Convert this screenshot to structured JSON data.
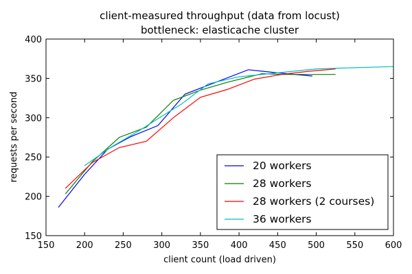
{
  "chart_data": {
    "type": "line",
    "title": [
      "client-measured throughput (data from locust)",
      "bottleneck: elasticache cluster"
    ],
    "xlabel": "client count (load driven)",
    "ylabel": "requests per second",
    "xlim": [
      150,
      600
    ],
    "ylim": [
      150,
      400
    ],
    "xticks": [
      150,
      200,
      250,
      300,
      350,
      400,
      450,
      500,
      550,
      600
    ],
    "yticks": [
      150,
      200,
      250,
      300,
      350,
      400
    ],
    "grid": false,
    "legend_position": "lower-right",
    "series": [
      {
        "name": "20 workers",
        "color": "#0000ff",
        "points": [
          [
            166,
            186
          ],
          [
            200,
            228
          ],
          [
            230,
            260
          ],
          [
            260,
            276
          ],
          [
            295,
            290
          ],
          [
            330,
            330
          ],
          [
            412,
            361
          ],
          [
            450,
            357
          ],
          [
            495,
            353
          ]
        ]
      },
      {
        "name": "28 workers",
        "color": "#008000",
        "points": [
          [
            175,
            203
          ],
          [
            210,
            244
          ],
          [
            245,
            275
          ],
          [
            280,
            288
          ],
          [
            315,
            322
          ],
          [
            350,
            335
          ],
          [
            385,
            345
          ],
          [
            430,
            356
          ],
          [
            455,
            355
          ],
          [
            525,
            355
          ]
        ]
      },
      {
        "name": "28 workers (2 courses)",
        "color": "#ff0000",
        "points": [
          [
            175,
            210
          ],
          [
            210,
            243
          ],
          [
            245,
            262
          ],
          [
            280,
            270
          ],
          [
            315,
            300
          ],
          [
            350,
            326
          ],
          [
            385,
            336
          ],
          [
            420,
            349
          ],
          [
            455,
            355
          ],
          [
            490,
            359
          ],
          [
            525,
            362
          ]
        ]
      },
      {
        "name": "36 workers",
        "color": "#00bfbf",
        "points": [
          [
            200,
            239
          ],
          [
            235,
            263
          ],
          [
            270,
            283
          ],
          [
            305,
            305
          ],
          [
            325,
            317
          ],
          [
            360,
            343
          ],
          [
            400,
            352
          ],
          [
            440,
            356
          ],
          [
            500,
            362
          ],
          [
            530,
            363
          ],
          [
            600,
            365
          ]
        ]
      }
    ]
  }
}
